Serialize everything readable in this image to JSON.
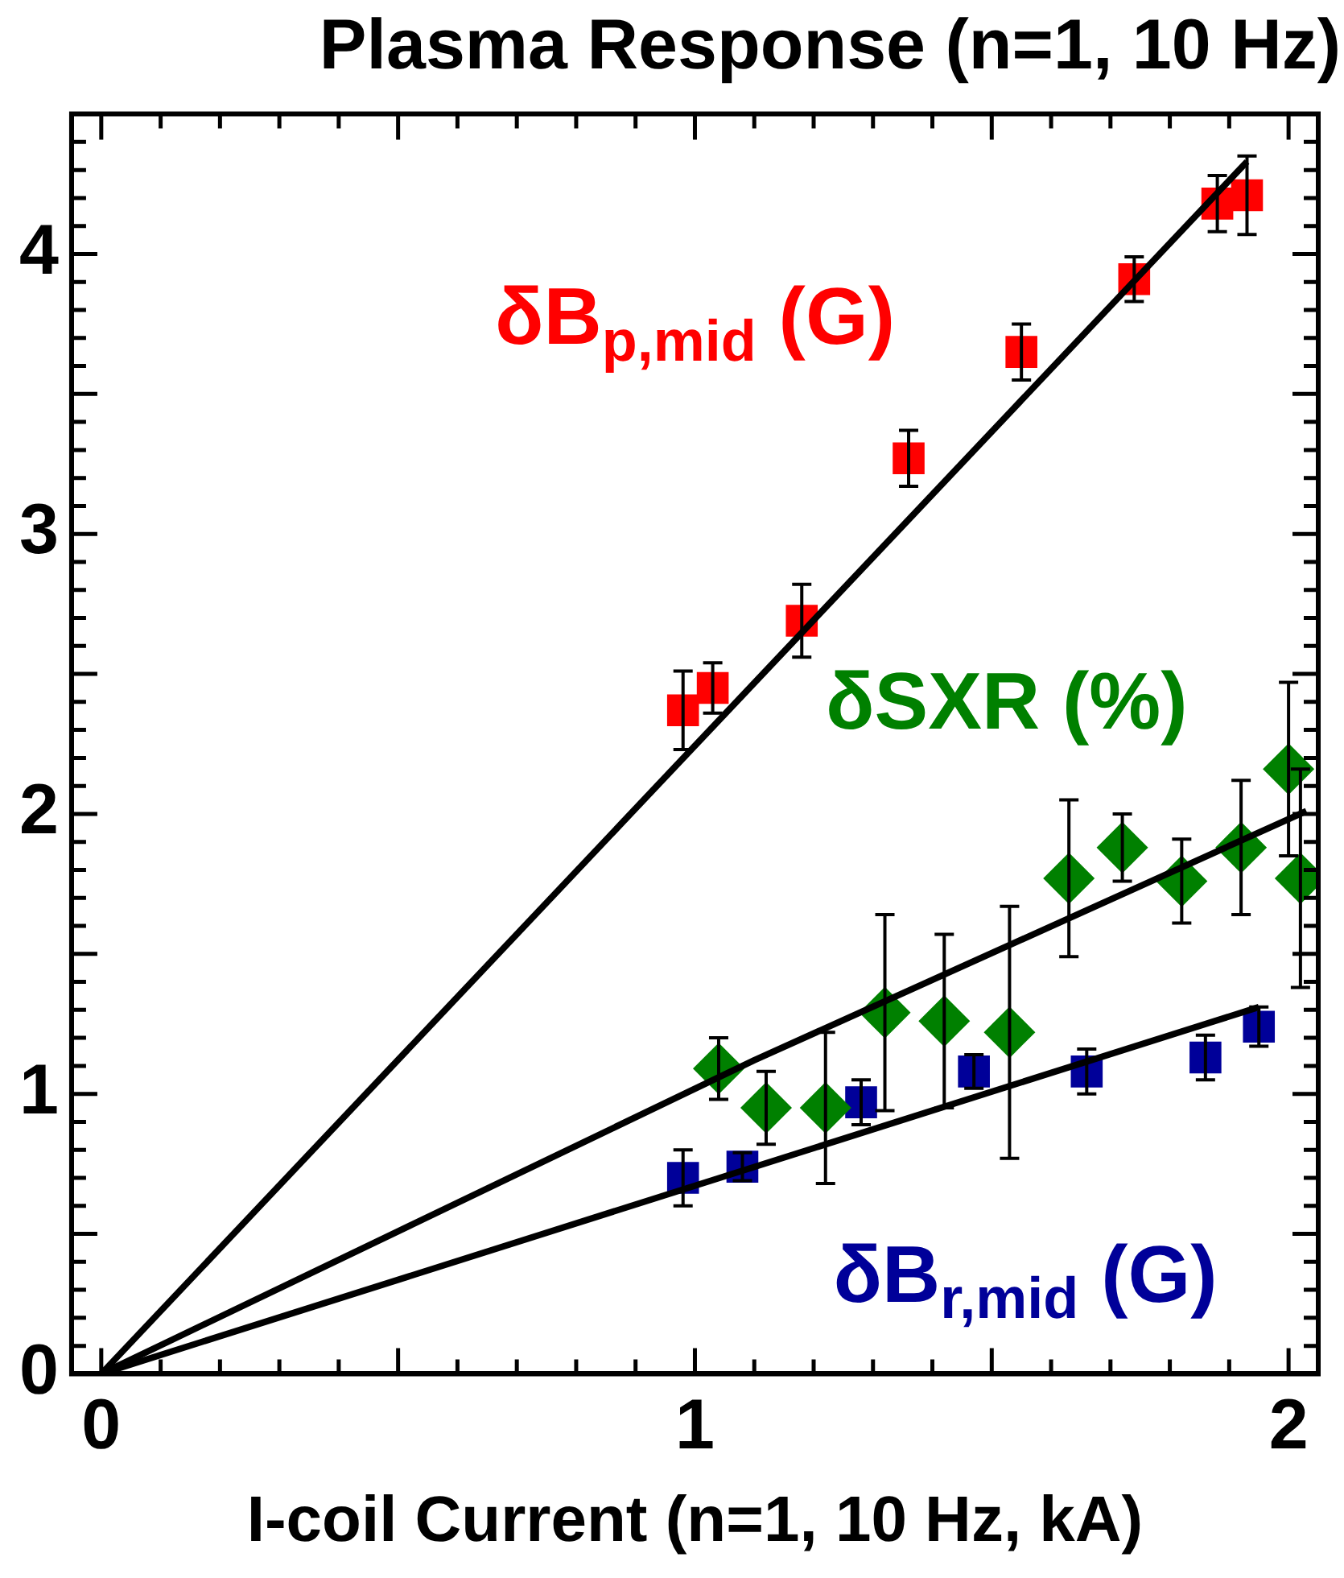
{
  "chart_data": {
    "type": "scatter",
    "title": "Plasma Response (n=1, 10 Hz)",
    "xlabel": "I-coil Current (n=1, 10 Hz, kA)",
    "xlim": [
      -0.05,
      2.05
    ],
    "ylim": [
      0,
      4.5
    ],
    "xticks": [
      0,
      {
        "value": 0.1,
        "label": null
      },
      {
        "value": 0.2,
        "label": null
      },
      {
        "value": 0.3,
        "label": null
      },
      {
        "value": 0.4,
        "label": null
      },
      {
        "value": 0.5,
        "label": null
      },
      {
        "value": 0.6,
        "label": null
      },
      {
        "value": 0.7,
        "label": null
      },
      {
        "value": 0.8,
        "label": null
      },
      {
        "value": 0.9,
        "label": null
      },
      1,
      {
        "value": 1.1,
        "label": null
      },
      {
        "value": 1.2,
        "label": null
      },
      {
        "value": 1.3,
        "label": null
      },
      {
        "value": 1.4,
        "label": null
      },
      {
        "value": 1.5,
        "label": null
      },
      {
        "value": 1.6,
        "label": null
      },
      {
        "value": 1.7,
        "label": null
      },
      {
        "value": 1.8,
        "label": null
      },
      {
        "value": 1.9,
        "label": null
      },
      2
    ],
    "yticks": [
      0,
      {
        "value": 0.1,
        "label": null
      },
      {
        "value": 0.2,
        "label": null
      },
      {
        "value": 0.3,
        "label": null
      },
      {
        "value": 0.4,
        "label": null
      },
      {
        "value": 0.5,
        "label": null
      },
      {
        "value": 0.6,
        "label": null
      },
      {
        "value": 0.7,
        "label": null
      },
      {
        "value": 0.8,
        "label": null
      },
      {
        "value": 0.9,
        "label": null
      },
      1,
      {
        "value": 1.1,
        "label": null
      },
      {
        "value": 1.2,
        "label": null
      },
      {
        "value": 1.3,
        "label": null
      },
      {
        "value": 1.4,
        "label": null
      },
      {
        "value": 1.5,
        "label": null
      },
      {
        "value": 1.6,
        "label": null
      },
      {
        "value": 1.7,
        "label": null
      },
      {
        "value": 1.8,
        "label": null
      },
      {
        "value": 1.9,
        "label": null
      },
      2,
      {
        "value": 2.1,
        "label": null
      },
      {
        "value": 2.2,
        "label": null
      },
      {
        "value": 2.3,
        "label": null
      },
      {
        "value": 2.4,
        "label": null
      },
      {
        "value": 2.5,
        "label": null
      },
      {
        "value": 2.6,
        "label": null
      },
      {
        "value": 2.7,
        "label": null
      },
      {
        "value": 2.8,
        "label": null
      },
      {
        "value": 2.9,
        "label": null
      },
      3,
      {
        "value": 3.1,
        "label": null
      },
      {
        "value": 3.2,
        "label": null
      },
      {
        "value": 3.3,
        "label": null
      },
      {
        "value": 3.4,
        "label": null
      },
      {
        "value": 3.5,
        "label": null
      },
      {
        "value": 3.6,
        "label": null
      },
      {
        "value": 3.7,
        "label": null
      },
      {
        "value": 3.8,
        "label": null
      },
      {
        "value": 3.9,
        "label": null
      },
      4,
      {
        "value": 4.1,
        "label": null
      },
      {
        "value": 4.2,
        "label": null
      },
      {
        "value": 4.3,
        "label": null
      },
      {
        "value": 4.4,
        "label": null
      }
    ],
    "grid": false,
    "legend": false,
    "series": [
      {
        "name": "δB$_{p,mid}$ (G)",
        "color": "#ff0000",
        "marker": "square",
        "x": [
          0.98,
          1.03,
          1.18,
          1.36,
          1.55,
          1.74,
          1.88,
          1.93
        ],
        "values": [
          2.37,
          2.45,
          2.69,
          3.27,
          3.65,
          3.91,
          4.18,
          4.21
        ],
        "errors": [
          0.14,
          0.09,
          0.13,
          0.1,
          0.1,
          0.08,
          0.1,
          0.14
        ]
      },
      {
        "name": "δSXR (%)",
        "color": "#008000",
        "marker": "diamond",
        "x": [
          1.04,
          1.12,
          1.22,
          1.32,
          1.42,
          1.53,
          1.63,
          1.72,
          1.82,
          1.92,
          2.0,
          2.02
        ],
        "values": [
          1.09,
          0.95,
          0.95,
          1.29,
          1.26,
          1.22,
          1.77,
          1.88,
          1.76,
          1.88,
          2.16,
          1.77
        ],
        "errors": [
          0.11,
          0.13,
          0.27,
          0.35,
          0.31,
          0.45,
          0.28,
          0.12,
          0.15,
          0.24,
          0.31,
          0.39
        ]
      },
      {
        "name": "δB$_{r,mid}$ (G)",
        "color": "#000099",
        "marker": "square",
        "x": [
          0.98,
          1.08,
          1.28,
          1.47,
          1.66,
          1.86,
          1.95
        ],
        "values": [
          0.7,
          0.74,
          0.97,
          1.08,
          1.08,
          1.13,
          1.24
        ],
        "errors": [
          0.1,
          0.05,
          0.08,
          0.06,
          0.08,
          0.08,
          0.07
        ]
      },
      {
        "type": "line",
        "color": "#000000",
        "marker": "none",
        "x": [
          0,
          1.93
        ],
        "values": [
          0,
          4.33
        ]
      },
      {
        "type": "line",
        "color": "#000000",
        "marker": "none",
        "x": [
          0,
          1.1,
          2.03
        ],
        "values": [
          0,
          1.12,
          2.01
        ]
      },
      {
        "type": "line",
        "color": "#000000",
        "marker": "none",
        "x": [
          0,
          1.95
        ],
        "values": [
          0,
          1.31
        ]
      }
    ]
  }
}
